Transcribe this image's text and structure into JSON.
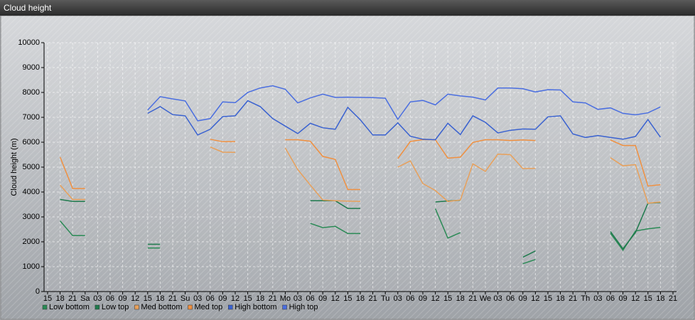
{
  "chart_data": {
    "type": "line",
    "title": "Cloud height",
    "y_label": "Cloud height (m)",
    "categories": [
      "15",
      "18",
      "21",
      "Sa",
      "03",
      "06",
      "09",
      "12",
      "15",
      "18",
      "21",
      "Su",
      "03",
      "06",
      "09",
      "12",
      "15",
      "18",
      "21",
      "Mo",
      "03",
      "06",
      "09",
      "12",
      "15",
      "18",
      "21",
      "Tu",
      "03",
      "06",
      "09",
      "12",
      "15",
      "18",
      "21",
      "We",
      "03",
      "06",
      "09",
      "12",
      "15",
      "18",
      "21",
      "Th",
      "03",
      "06",
      "09",
      "12",
      "15",
      "18",
      "21"
    ],
    "ylim": [
      0,
      10000
    ],
    "yticks": [
      0,
      1000,
      2000,
      3000,
      4000,
      5000,
      6000,
      7000,
      8000,
      9000,
      10000
    ],
    "grid": true,
    "series": [
      {
        "name": "Low bottom",
        "color": "#2a8a55",
        "values": [
          null,
          2840,
          2250,
          2250,
          null,
          null,
          null,
          null,
          1750,
          1750,
          null,
          null,
          null,
          null,
          null,
          null,
          null,
          null,
          null,
          null,
          null,
          2740,
          2570,
          2620,
          2330,
          2330,
          null,
          null,
          null,
          null,
          null,
          3330,
          2150,
          2370,
          null,
          null,
          null,
          null,
          1120,
          1290,
          null,
          null,
          null,
          null,
          null,
          2340,
          1660,
          2430,
          2520,
          2580,
          null
        ]
      },
      {
        "name": "Low top",
        "color": "#1f7a4d",
        "values": [
          null,
          3700,
          3620,
          3620,
          null,
          null,
          null,
          null,
          1900,
          1900,
          null,
          null,
          null,
          null,
          null,
          null,
          null,
          null,
          null,
          null,
          null,
          3650,
          3650,
          3650,
          3340,
          3340,
          null,
          null,
          null,
          null,
          null,
          3600,
          3640,
          3670,
          null,
          null,
          null,
          null,
          1380,
          1630,
          null,
          null,
          null,
          null,
          null,
          2410,
          1720,
          2370,
          3550,
          3580,
          null
        ]
      },
      {
        "name": "Med bottom",
        "color": "#e8a05a",
        "values": [
          null,
          4280,
          3700,
          3700,
          null,
          null,
          null,
          null,
          null,
          null,
          null,
          null,
          null,
          5810,
          5600,
          5590,
          null,
          null,
          null,
          5770,
          4900,
          4280,
          3680,
          3650,
          3630,
          3620,
          null,
          null,
          5000,
          5250,
          4340,
          4060,
          3620,
          3680,
          5130,
          4830,
          5520,
          5500,
          4940,
          4950,
          null,
          null,
          null,
          null,
          null,
          5380,
          5050,
          5100,
          3550,
          3600,
          null
        ]
      },
      {
        "name": "Med top",
        "color": "#f09040",
        "values": [
          null,
          5400,
          4140,
          4140,
          null,
          null,
          null,
          null,
          null,
          null,
          null,
          null,
          null,
          6120,
          6020,
          6030,
          null,
          null,
          null,
          6100,
          6100,
          6040,
          5430,
          5310,
          4100,
          4100,
          null,
          null,
          5340,
          6030,
          6110,
          6100,
          5360,
          5400,
          5990,
          6100,
          6100,
          6070,
          6090,
          6070,
          null,
          null,
          null,
          null,
          null,
          6090,
          5870,
          5870,
          4240,
          4290,
          null
        ]
      },
      {
        "name": "High bottom",
        "color": "#3a62d0",
        "values": [
          null,
          null,
          null,
          null,
          null,
          null,
          null,
          null,
          7160,
          7430,
          7110,
          7060,
          6290,
          6520,
          7030,
          7060,
          7670,
          7430,
          6950,
          6650,
          6350,
          6760,
          6580,
          6520,
          7400,
          6900,
          6290,
          6290,
          6780,
          6240,
          6120,
          6100,
          6760,
          6310,
          7060,
          6800,
          6370,
          6480,
          6530,
          6520,
          7020,
          7060,
          6330,
          6190,
          6270,
          6190,
          6120,
          6230,
          6910,
          6200,
          null
        ]
      },
      {
        "name": "High top",
        "color": "#4a6ee0",
        "values": [
          null,
          null,
          null,
          null,
          null,
          null,
          null,
          null,
          7290,
          7830,
          7740,
          7660,
          6860,
          6950,
          7620,
          7590,
          8000,
          8180,
          8270,
          8130,
          7580,
          7780,
          7930,
          7800,
          7810,
          7800,
          7790,
          7770,
          6920,
          7620,
          7680,
          7500,
          7930,
          7860,
          7810,
          7700,
          8180,
          8180,
          8150,
          8020,
          8110,
          8100,
          7620,
          7580,
          7320,
          7380,
          7160,
          7100,
          7180,
          7420,
          null
        ]
      }
    ]
  }
}
